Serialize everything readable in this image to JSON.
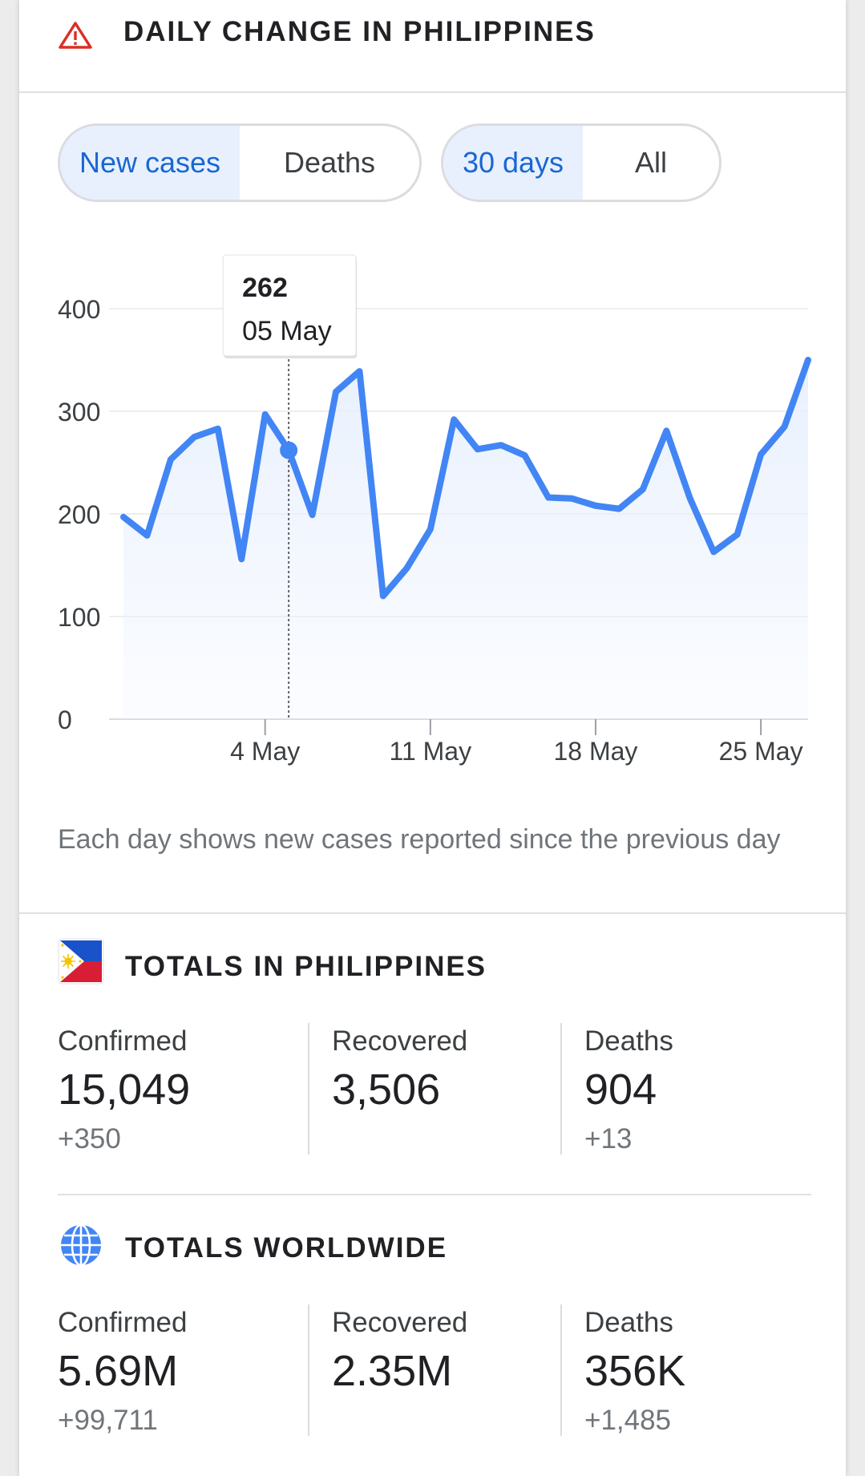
{
  "header": {
    "icon": "warning-triangle-icon",
    "title": "DAILY CHANGE IN PHILIPPINES",
    "accent_color": "#d93025"
  },
  "metric_toggle": {
    "options": [
      "New cases",
      "Deaths"
    ],
    "selected": "New cases"
  },
  "range_toggle": {
    "options": [
      "30 days",
      "All"
    ],
    "selected": "30 days"
  },
  "chart_data": {
    "type": "area",
    "series": [
      {
        "values": [
          197,
          179,
          253,
          275,
          283,
          156,
          297,
          262,
          199,
          319,
          339,
          120,
          147,
          185,
          292,
          263,
          267,
          257,
          216,
          215,
          208,
          205,
          224,
          281,
          215,
          163,
          180,
          258,
          285,
          350
        ]
      }
    ],
    "ylim": [
      0,
      400
    ],
    "yticks": [
      0,
      100,
      200,
      300,
      400
    ],
    "x_tick_labels": [
      "4 May",
      "11 May",
      "18 May",
      "25 May"
    ],
    "x_tick_indices": [
      6,
      13,
      20,
      27
    ],
    "line_color": "#4285f4",
    "fill_color": "#e8f0fe",
    "grid": true,
    "tooltip": {
      "value": "262",
      "date": "05 May",
      "index": 7
    }
  },
  "note": "Each day shows new cases reported since the previous day",
  "totals_country": {
    "icon": "philippines-flag-icon",
    "title": "TOTALS IN PHILIPPINES",
    "confirmed": {
      "label": "Confirmed",
      "value": "15,049",
      "change": "+350"
    },
    "recovered": {
      "label": "Recovered",
      "value": "3,506",
      "change": ""
    },
    "deaths": {
      "label": "Deaths",
      "value": "904",
      "change": "+13"
    }
  },
  "totals_world": {
    "icon": "globe-icon",
    "title": "TOTALS WORLDWIDE",
    "confirmed": {
      "label": "Confirmed",
      "value": "5.69M",
      "change": "+99,711"
    },
    "recovered": {
      "label": "Recovered",
      "value": "2.35M",
      "change": ""
    },
    "deaths": {
      "label": "Deaths",
      "value": "356K",
      "change": "+1,485"
    }
  }
}
